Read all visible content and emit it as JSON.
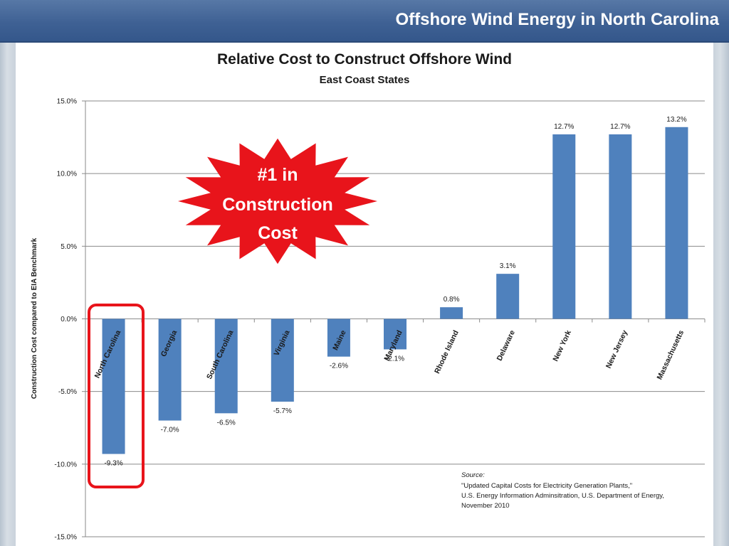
{
  "header": {
    "title": "Offshore Wind Energy in North Carolina"
  },
  "callout": {
    "lines": [
      "#1 in",
      "Construction",
      "Cost"
    ]
  },
  "source_note": {
    "lines": [
      "Source:",
      "\"Updated Capital Costs for Electricity Generation Plants,\"",
      "U.S. Energy Information Adminsitration, U.S. Department of Energy,",
      "November 2010"
    ]
  },
  "highlight": {
    "category": "North Carolina",
    "color": "#e8141b"
  },
  "chart_data": {
    "type": "bar",
    "title": "Relative Cost to Construct Offshore Wind",
    "subtitle": "East Coast States",
    "ylabel": "Construction Cost compared to EIA Benchmark",
    "xlabel": "",
    "ylim": [
      -15,
      15
    ],
    "yticks": [
      15,
      10,
      5,
      0,
      -5,
      -10,
      -15
    ],
    "ytick_labels": [
      "15.0%",
      "10.0%",
      "5.0%",
      "0.0%",
      "-5.0%",
      "-10.0%",
      "-15.0%"
    ],
    "grid": true,
    "bar_color": "#4f81bd",
    "categories": [
      "North Carolina",
      "Georgia",
      "South Carolina",
      "Virginia",
      "Maine",
      "Maryland",
      "Rhode Island",
      "Delaware",
      "New York",
      "New Jersey",
      "Massachusetts"
    ],
    "values": [
      -9.3,
      -7.0,
      -6.5,
      -5.7,
      -2.6,
      -2.1,
      0.8,
      3.1,
      12.7,
      12.7,
      13.2
    ],
    "value_labels": [
      "-9.3%",
      "-7.0%",
      "-6.5%",
      "-5.7%",
      "-2.6%",
      "-2.1%",
      "0.8%",
      "3.1%",
      "12.7%",
      "12.7%",
      "13.2%"
    ]
  }
}
